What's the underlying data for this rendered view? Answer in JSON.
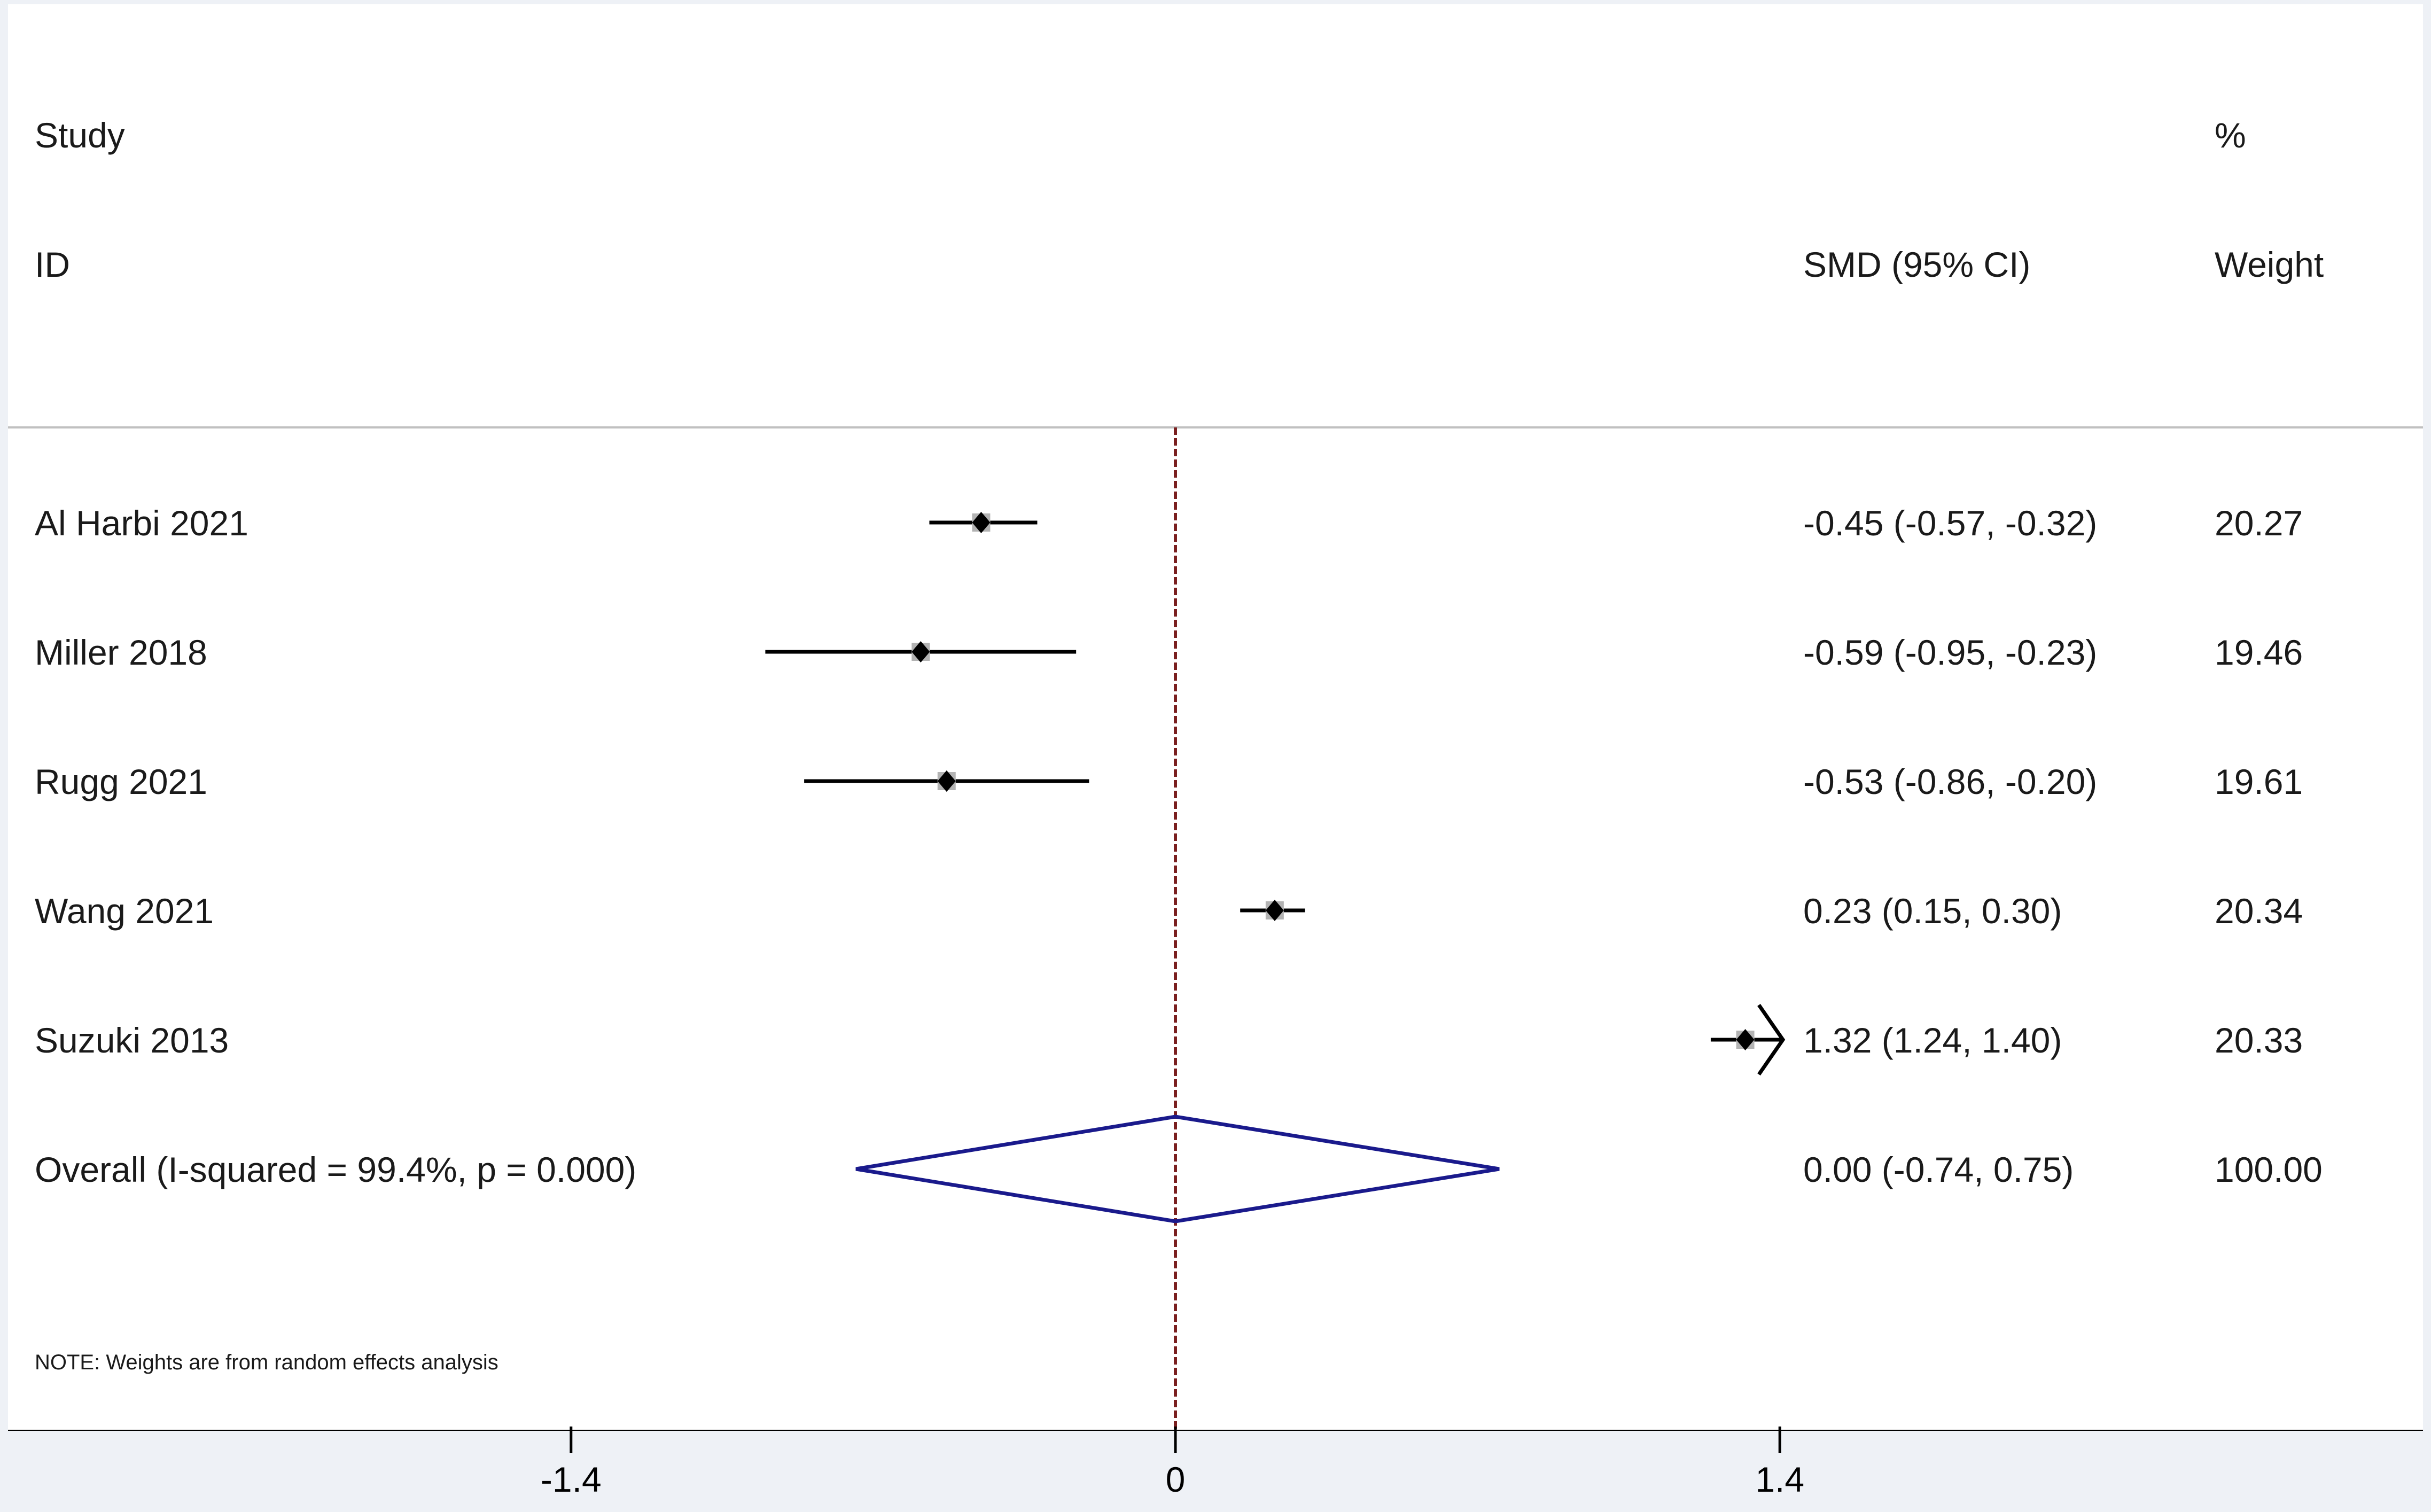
{
  "header": {
    "study_line1": "Study",
    "study_line2": "ID",
    "effect_label": "SMD (95% CI)",
    "weight_line1": "%",
    "weight_line2": "Weight"
  },
  "note": "NOTE: Weights are from random effects analysis",
  "colors": {
    "background": "#eef1f6",
    "panel": "#ffffff",
    "ci_line": "#000000",
    "point": "#000000",
    "weight_box": "#b3b3b3",
    "overall_diamond": "#1a1a8c",
    "null_line": "#7a1f1f",
    "rule": "#c0c0c0",
    "axis": "#000000"
  },
  "chart_data": {
    "type": "forest",
    "x_axis": {
      "ticks": [
        -1.4,
        0,
        1.4
      ],
      "tick_labels": [
        "-1.4",
        "0",
        "1.4"
      ]
    },
    "null_line": 0,
    "studies": [
      {
        "id": "Al Harbi 2021",
        "smd": -0.45,
        "lo": -0.57,
        "hi": -0.32,
        "ci_text": "-0.45 (-0.57, -0.32)",
        "weight": "20.27"
      },
      {
        "id": "Miller 2018",
        "smd": -0.59,
        "lo": -0.95,
        "hi": -0.23,
        "ci_text": "-0.59 (-0.95, -0.23)",
        "weight": "19.46"
      },
      {
        "id": "Rugg 2021",
        "smd": -0.53,
        "lo": -0.86,
        "hi": -0.2,
        "ci_text": "-0.53 (-0.86, -0.20)",
        "weight": "19.61"
      },
      {
        "id": "Wang 2021",
        "smd": 0.23,
        "lo": 0.15,
        "hi": 0.3,
        "ci_text": "0.23 (0.15, 0.30)",
        "weight": "20.34"
      },
      {
        "id": "Suzuki 2013",
        "smd": 1.32,
        "lo": 1.24,
        "hi": 1.4,
        "ci_text": "1.32 (1.24, 1.40)",
        "weight": "20.33",
        "clipped_right": true
      }
    ],
    "overall": {
      "label": "Overall  (I-squared = 99.4%, p = 0.000)",
      "smd": 0.0,
      "lo": -0.74,
      "hi": 0.75,
      "ci_text": "0.00 (-0.74, 0.75)",
      "weight": "100.00"
    }
  }
}
